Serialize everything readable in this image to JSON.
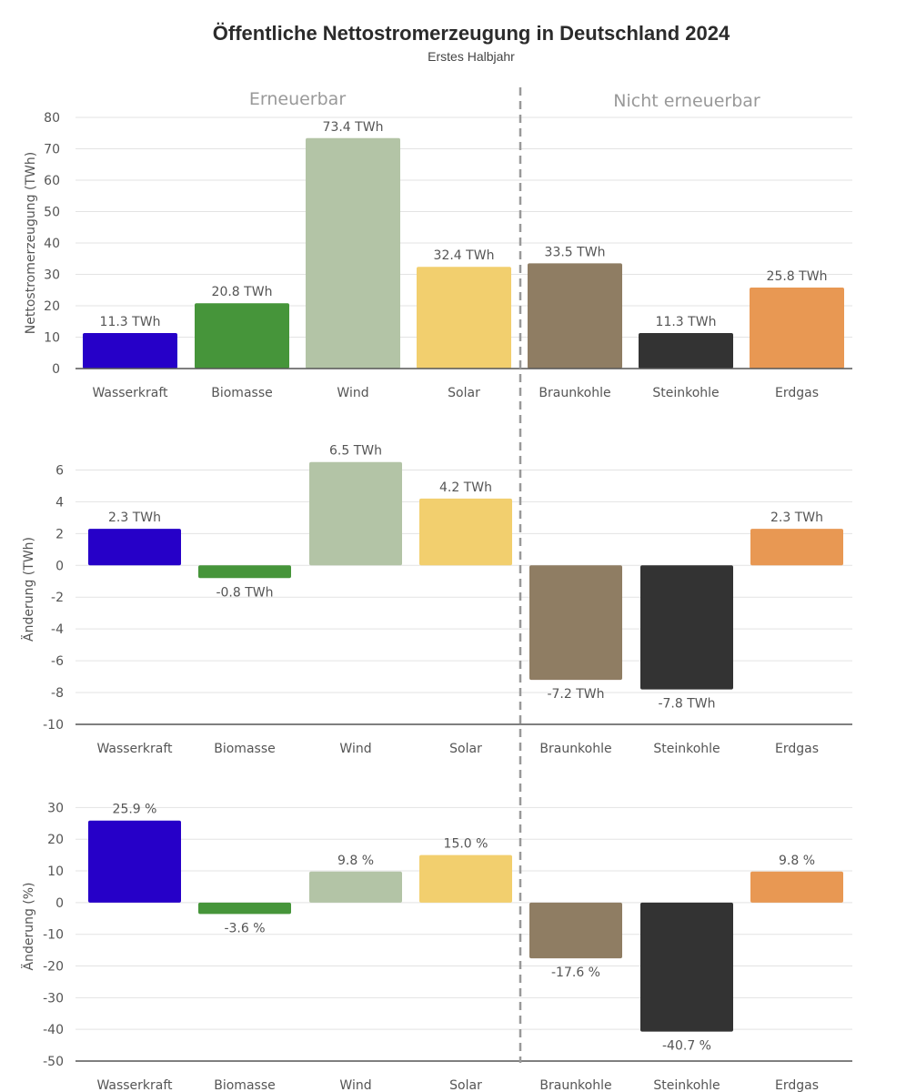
{
  "title": "Öffentliche Nettostromerzeugung in Deutschland 2024",
  "subtitle": "Erstes Halbjahr",
  "group_labels": {
    "renewable": "Erneuerbar",
    "nonrenewable": "Nicht erneuerbar"
  },
  "colors": {
    "Wasserkraft": "#2600c8",
    "Biomasse": "#46953a",
    "Wind": "#b3c4a6",
    "Solar": "#f2cf6e",
    "Braunkohle": "#8f7d63",
    "Steinkohle": "#333333",
    "Erdgas": "#e89853",
    "grid": "#e3e3e3",
    "axis": "#555555",
    "text": "#555555",
    "divider": "#999999"
  },
  "chart_data": [
    {
      "type": "bar",
      "title": "",
      "ylabel": "Nettostromerzeugung (TWh)",
      "ylim": [
        0,
        80
      ],
      "yticks": [
        0,
        10,
        20,
        30,
        40,
        50,
        60,
        70,
        80
      ],
      "categories": [
        "Wasserkraft",
        "Biomasse",
        "Wind",
        "Solar",
        "Braunkohle",
        "Steinkohle",
        "Erdgas"
      ],
      "values": [
        11.3,
        20.8,
        73.4,
        32.4,
        33.5,
        11.3,
        25.8
      ],
      "labels": [
        "11.3 TWh",
        "20.8 TWh",
        "73.4 TWh",
        "32.4 TWh",
        "33.5 TWh",
        "11.3 TWh",
        "25.8 TWh"
      ]
    },
    {
      "type": "bar",
      "title": "",
      "ylabel": "Änderung (TWh)",
      "ylim": [
        -10,
        7
      ],
      "yticks": [
        -10,
        -8,
        -6,
        -4,
        -2,
        0,
        2,
        4,
        6
      ],
      "categories": [
        "Wasserkraft",
        "Biomasse",
        "Wind",
        "Solar",
        "Braunkohle",
        "Steinkohle",
        "Erdgas"
      ],
      "values": [
        2.3,
        -0.8,
        6.5,
        4.2,
        -7.2,
        -7.8,
        2.3
      ],
      "labels": [
        "2.3 TWh",
        "-0.8 TWh",
        "6.5 TWh",
        "4.2 TWh",
        "-7.2 TWh",
        "-7.8 TWh",
        "2.3 TWh"
      ]
    },
    {
      "type": "bar",
      "title": "",
      "ylabel": "Änderung (%)",
      "ylim": [
        -50,
        35
      ],
      "yticks": [
        -50,
        -40,
        -30,
        -20,
        -10,
        0,
        10,
        20,
        30
      ],
      "categories": [
        "Wasserkraft",
        "Biomasse",
        "Wind",
        "Solar",
        "Braunkohle",
        "Steinkohle",
        "Erdgas"
      ],
      "values": [
        25.9,
        -3.6,
        9.8,
        15.0,
        -17.6,
        -40.7,
        9.8
      ],
      "labels": [
        "25.9 %",
        "-3.6 %",
        "9.8 %",
        "15.0 %",
        "-17.6 %",
        "-40.7 %",
        "9.8 %"
      ]
    }
  ]
}
